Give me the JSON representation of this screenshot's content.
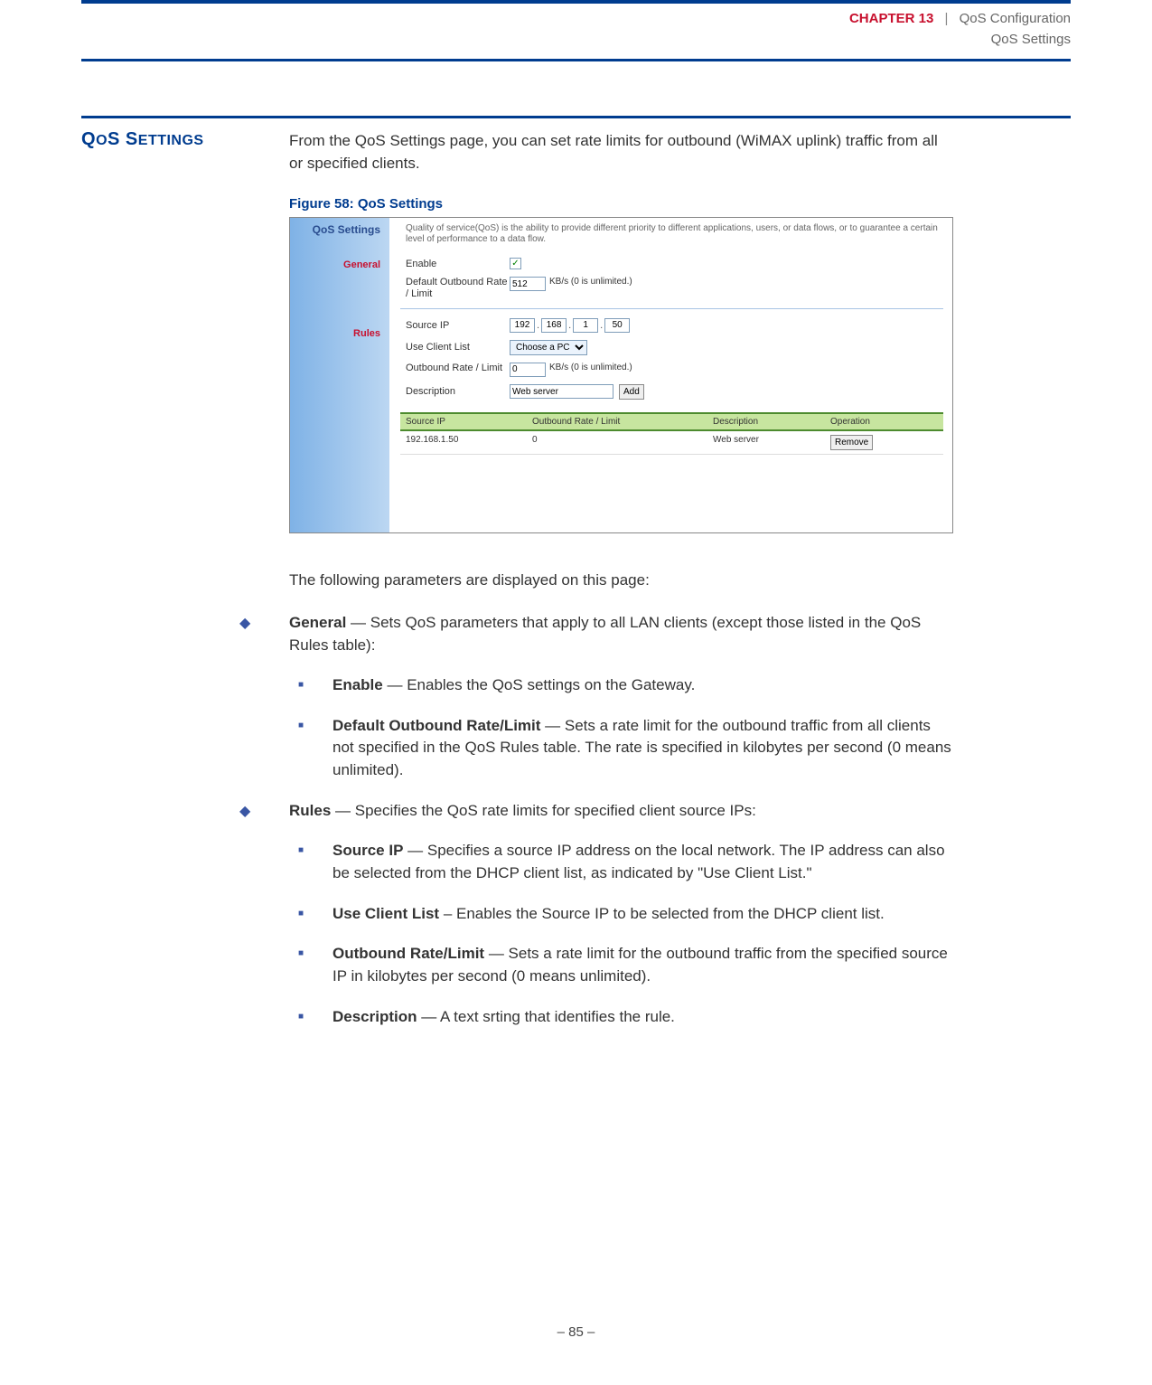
{
  "header": {
    "chapter_label": "CHAPTER",
    "chapter_num": "13",
    "separator": "|",
    "chapter_name": "QoS Configuration",
    "section_name": "QoS Settings"
  },
  "section_heading": "QOS SETTINGS",
  "intro": "From the QoS Settings page, you can set rate limits for outbound (WiMAX uplink) traffic from all or specified clients.",
  "figure_caption": "Figure 58:  QoS Settings",
  "screenshot": {
    "left": {
      "title": "QoS Settings",
      "general": "General",
      "rules": "Rules"
    },
    "desc": "Quality of service(QoS) is the ability to provide different priority to different applications, users, or data flows, or to guarantee a certain level of performance to a data flow.",
    "general": {
      "enable_label": "Enable",
      "rate_label": "Default Outbound Rate / Limit",
      "rate_value": "512",
      "rate_unit": "KB/s (0 is unlimited.)"
    },
    "rules": {
      "source_ip_label": "Source IP",
      "ip1": "192",
      "ip2": "168",
      "ip3": "1",
      "ip4": "50",
      "client_list_label": "Use Client List",
      "client_list_value": "Choose a PC",
      "rate_label": "Outbound Rate / Limit",
      "rate_value": "0",
      "rate_unit": "KB/s (0 is unlimited.)",
      "desc_label": "Description",
      "desc_value": "Web server",
      "add_btn": "Add"
    },
    "table": {
      "h1": "Source IP",
      "h2": "Outbound Rate / Limit",
      "h3": "Description",
      "h4": "Operation",
      "r1c1": "192.168.1.50",
      "r1c2": "0",
      "r1c3": "Web server",
      "remove_btn": "Remove"
    }
  },
  "after_fig": "The following parameters are displayed on this page:",
  "bullets": {
    "general_head": "General",
    "general_tail": " — Sets QoS parameters that apply to all LAN clients (except those listed in the QoS Rules table):",
    "enable_head": "Enable",
    "enable_tail": " — Enables the QoS settings on the Gateway.",
    "dorl_head": "Default Outbound Rate/Limit",
    "dorl_tail": " — Sets a rate limit for the outbound traffic from all clients not specified in the QoS Rules table. The rate is specified in kilobytes per second (0 means unlimited).",
    "rules_head": "Rules",
    "rules_tail": " — Specifies the QoS rate limits for specified client source IPs:",
    "srcip_head": "Source IP",
    "srcip_tail": " — Specifies a source IP address on the local network. The IP address can also be selected from the DHCP client list, as indicated by \"Use Client List.\"",
    "ucl_head": "Use Client List",
    "ucl_tail": " – Enables the Source IP to be selected from the DHCP client list.",
    "orl_head": "Outbound Rate/Limit",
    "orl_tail": " — Sets a rate limit for the outbound traffic from the specified source IP in kilobytes per second (0 means unlimited).",
    "desc_head": "Description",
    "desc_tail": " — A text srting that identifies the rule."
  },
  "footer": "–  85  –"
}
